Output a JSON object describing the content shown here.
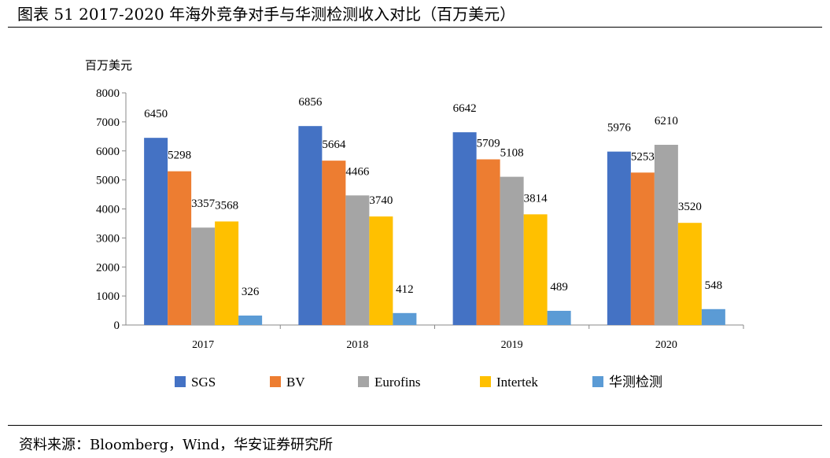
{
  "title": "图表 51 2017-2020 年海外竞争对手与华测检测收入对比（百万美元）",
  "source": "资料来源：Bloomberg，Wind，华安证券研究所",
  "chart_data": {
    "type": "bar",
    "title": "",
    "ylabel": "百万美元",
    "xlabel": "",
    "categories": [
      "2017",
      "2018",
      "2019",
      "2020"
    ],
    "ylim": [
      0,
      8000
    ],
    "yticks": [
      0,
      1000,
      2000,
      3000,
      4000,
      5000,
      6000,
      7000,
      8000
    ],
    "grid": false,
    "legend_position": "bottom",
    "series": [
      {
        "name": "SGS",
        "color": "#4472C4",
        "values": [
          6450,
          6856,
          6642,
          5976
        ]
      },
      {
        "name": "BV",
        "color": "#ED7D31",
        "values": [
          5298,
          5664,
          5709,
          5253
        ]
      },
      {
        "name": "Eurofins",
        "color": "#A5A5A5",
        "values": [
          3357,
          4466,
          5108,
          6210
        ]
      },
      {
        "name": "Intertek",
        "color": "#FFC000",
        "values": [
          3568,
          3740,
          3814,
          3520
        ]
      },
      {
        "name": "华测检测",
        "color": "#5B9BD5",
        "values": [
          326,
          412,
          489,
          548
        ]
      }
    ]
  }
}
